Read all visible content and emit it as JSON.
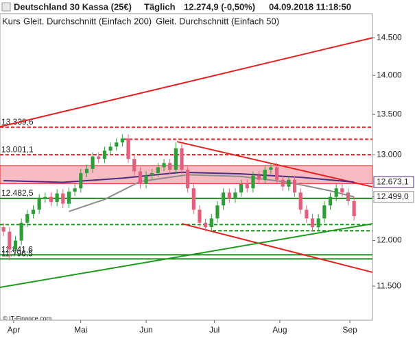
{
  "chart_data": {
    "type": "candlestick",
    "title": "Deutschland 30 Kassa (25€)",
    "period": "Täglich",
    "last_price": "12.274,9 (-0,50%)",
    "timestamp": "04.09.2018 11:18:50",
    "price_label": "Kurs",
    "source": "© IT-Finance.com",
    "log_y": true,
    "up_color": "#2f9e3a",
    "down_color": "#e0607e",
    "open": [
      12150,
      12100,
      11900,
      12000,
      12200,
      12300,
      12350,
      12480,
      12500,
      12440,
      12540,
      12420,
      12560,
      12600,
      12780,
      12830,
      12980,
      12950,
      13050,
      13100,
      13150,
      13200,
      12950,
      12800,
      12650,
      12750,
      12780,
      12850,
      12900,
      12820,
      13080,
      12820,
      12600,
      12350,
      12200,
      12150,
      12250,
      12400,
      12550,
      12480,
      12550,
      12650,
      12600,
      12750,
      12700,
      12820,
      12850,
      12700,
      12620,
      12700,
      12550,
      12350,
      12250,
      12150,
      12250,
      12400,
      12500,
      12600,
      12550,
      12450
    ],
    "high": [
      12200,
      12150,
      12050,
      12250,
      12350,
      12400,
      12530,
      12550,
      12550,
      12590,
      12590,
      12610,
      12650,
      12830,
      12880,
      13030,
      13030,
      13100,
      13150,
      13200,
      13250,
      13250,
      13000,
      12850,
      12800,
      12830,
      12900,
      12950,
      12950,
      13150,
      13130,
      12870,
      12650,
      12400,
      12250,
      12300,
      12450,
      12600,
      12600,
      12600,
      12700,
      12700,
      12800,
      12800,
      12870,
      12900,
      12900,
      12750,
      12750,
      12750,
      12600,
      12400,
      12300,
      12300,
      12450,
      12550,
      12650,
      12650,
      12600,
      12500
    ],
    "low": [
      12050,
      11780,
      11850,
      11950,
      12150,
      12250,
      12300,
      12430,
      12390,
      12390,
      12370,
      12370,
      12510,
      12550,
      12730,
      12780,
      12900,
      12900,
      13000,
      13050,
      13100,
      12900,
      12750,
      12600,
      12600,
      12700,
      12730,
      12800,
      12770,
      12770,
      12770,
      12550,
      12300,
      12150,
      12100,
      12100,
      12200,
      12350,
      12430,
      12430,
      12500,
      12550,
      12550,
      12650,
      12650,
      12770,
      12650,
      12570,
      12570,
      12500,
      12300,
      12200,
      12100,
      12100,
      12200,
      12350,
      12450,
      12500,
      12400,
      12225
    ],
    "close": [
      12100,
      11900,
      12000,
      12200,
      12300,
      12350,
      12480,
      12500,
      12440,
      12540,
      12420,
      12560,
      12600,
      12780,
      12830,
      12980,
      12950,
      13050,
      13100,
      13150,
      13200,
      12950,
      12800,
      12650,
      12750,
      12780,
      12850,
      12900,
      12820,
      13080,
      12820,
      12600,
      12350,
      12200,
      12150,
      12250,
      12400,
      12550,
      12480,
      12550,
      12650,
      12600,
      12750,
      12700,
      12820,
      12850,
      12700,
      12620,
      12700,
      12550,
      12350,
      12250,
      12150,
      12250,
      12400,
      12500,
      12600,
      12550,
      12450,
      12275
    ],
    "series": [
      {
        "name": "Gleit. Durchschnitt (Einfach 200)",
        "color": "#4b2a80",
        "x": [
          0,
          10,
          20,
          30,
          40,
          50,
          59
        ],
        "values": [
          12690,
          12670,
          12720,
          12790,
          12770,
          12730,
          12673.1
        ],
        "last_label": "12.673,1"
      },
      {
        "name": "Gleit. Durchschnitt (Einfach 50)",
        "color": "#8c8c8c",
        "x": [
          11,
          17,
          23,
          31,
          40,
          48,
          55,
          59
        ],
        "values": [
          12330,
          12470,
          12680,
          12760,
          12740,
          12670,
          12570,
          12499.0
        ],
        "last_label": "12.499,0"
      }
    ],
    "levels": [
      {
        "value": 13339.6,
        "label": "13.339,6",
        "color": "#e52020",
        "dashed": true
      },
      {
        "value": 13190,
        "color": "#e52020",
        "dashed": true,
        "x_from": 20.2
      },
      {
        "value": 13001.1,
        "label": "13.001,1",
        "color": "#e52020",
        "dashed": true
      },
      {
        "value": 12482.5,
        "label": "12.482,5",
        "color": "#1e8c1e",
        "dashed": false
      },
      {
        "value": 12180,
        "color": "#1e8c1e",
        "dashed": true
      },
      {
        "value": 12110,
        "color": "#1e8c1e",
        "dashed": true,
        "x_from": 35.2
      },
      {
        "value": 11841.6,
        "label": "11.841,6",
        "color": "#1e8c1e",
        "dashed": false
      },
      {
        "value": 11796.5,
        "label": "11.796,5",
        "color": "#1e8c1e",
        "dashed": false
      }
    ],
    "zone": {
      "from": 12655,
      "to": 12870,
      "color": "#f4a0a8"
    },
    "trendlines": [
      {
        "x": [
          -0.6,
          62.1
        ],
        "values": [
          13345,
          14500
        ],
        "color": "#e52020"
      },
      {
        "x": [
          29.2,
          62.1
        ],
        "values": [
          13160,
          12617
        ],
        "color": "#e52020"
      },
      {
        "x": [
          30.0,
          62.1
        ],
        "values": [
          12190,
          11650
        ],
        "color": "#e52020"
      },
      {
        "x": [
          -0.6,
          62.1
        ],
        "values": [
          11487,
          12190
        ],
        "color": "#1e9a1e"
      }
    ],
    "xlim": [
      -0.6,
      62.1
    ],
    "xticks": [
      {
        "value": 1.7,
        "label": "Apr"
      },
      {
        "value": 13.0,
        "label": "Mai"
      },
      {
        "value": 24.0,
        "label": "Jun"
      },
      {
        "value": 35.5,
        "label": "Jul"
      },
      {
        "value": 46.5,
        "label": "Aug"
      },
      {
        "value": 58.3,
        "label": "Sep"
      }
    ],
    "ylim": [
      11140,
      14830
    ],
    "yticks": [
      {
        "value": 11500,
        "label": "11.500"
      },
      {
        "value": 12000,
        "label": "12.000"
      },
      {
        "value": 12500,
        "label": "12.500"
      },
      {
        "value": 13000,
        "label": "13.000"
      },
      {
        "value": 13500,
        "label": "13.500"
      },
      {
        "value": 14000,
        "label": "14.000"
      },
      {
        "value": 14500,
        "label": "14.500"
      }
    ]
  }
}
